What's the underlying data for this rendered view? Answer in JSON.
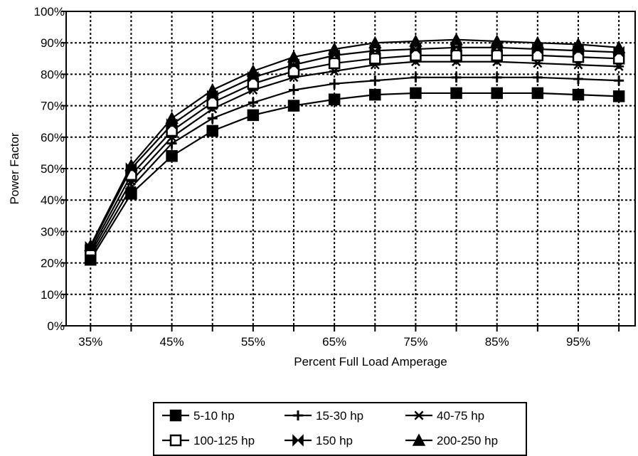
{
  "chart_data": {
    "type": "line",
    "title": "",
    "xlabel": "Percent Full Load Amperage",
    "ylabel": "Power Factor",
    "x": [
      35,
      40,
      45,
      50,
      55,
      60,
      65,
      70,
      75,
      80,
      85,
      90,
      95,
      100
    ],
    "x_tick_values": [
      35,
      45,
      55,
      65,
      75,
      85,
      95
    ],
    "x_tick_labels": [
      "35%",
      "45%",
      "55%",
      "65%",
      "75%",
      "85%",
      "95%"
    ],
    "y_tick_values": [
      0,
      10,
      20,
      30,
      40,
      50,
      60,
      70,
      80,
      90,
      100
    ],
    "y_tick_labels": [
      "0%",
      "10%",
      "20%",
      "30%",
      "40%",
      "50%",
      "60%",
      "70%",
      "80%",
      "90%",
      "100%"
    ],
    "xlim": [
      32,
      102
    ],
    "ylim": [
      0,
      100
    ],
    "grid": true,
    "legend_position": "bottom",
    "series": [
      {
        "name": "5-10 hp",
        "marker": "square",
        "values": [
          21,
          42,
          54,
          62,
          67,
          70,
          72,
          73.5,
          74,
          74,
          74,
          74,
          73.5,
          73
        ]
      },
      {
        "name": "15-30 hp",
        "marker": "plus",
        "values": [
          22,
          44,
          58,
          66,
          71,
          75,
          77,
          78,
          79,
          79,
          79,
          79,
          78.5,
          78
        ]
      },
      {
        "name": "40-75 hp",
        "marker": "asterisk",
        "values": [
          23,
          46,
          60,
          69,
          75,
          79,
          81,
          83,
          84,
          84,
          84,
          83.5,
          83,
          82.5
        ]
      },
      {
        "name": "100-125 hp",
        "marker": "open-square",
        "values": [
          24,
          48,
          62,
          71,
          77,
          81,
          83.5,
          85,
          86,
          86,
          86,
          86,
          85.5,
          85
        ]
      },
      {
        "name": "150 hp",
        "marker": "bowtie",
        "values": [
          25,
          50,
          64,
          73,
          79,
          83,
          86,
          87.5,
          88,
          88.5,
          88.5,
          88,
          87.5,
          87
        ]
      },
      {
        "name": "200-250 hp",
        "marker": "triangle",
        "values": [
          25.5,
          51,
          66,
          75,
          81,
          85.5,
          88,
          90,
          90.5,
          91,
          90.5,
          90,
          89.5,
          88.5
        ]
      }
    ]
  }
}
